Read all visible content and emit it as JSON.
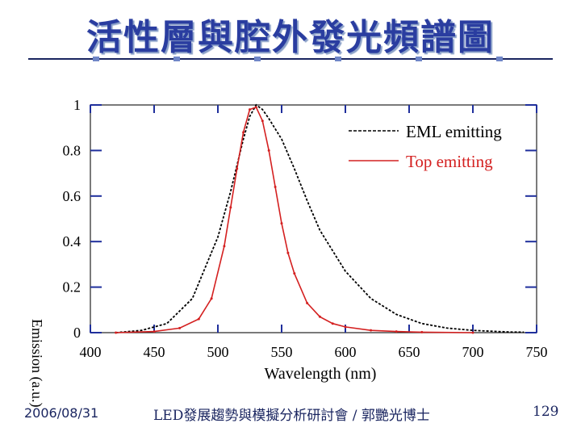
{
  "slide": {
    "title": "活性層與腔外發光頻譜圖",
    "footer_date": "2006/08/31",
    "footer_center": "LED發展趨勢與模擬分析研討會 / 郭艷光博士",
    "page_number": "129"
  },
  "colors": {
    "title": "#2a3da0",
    "eml": "#000000",
    "top": "#d42020",
    "axis_tick": "#1f2f9c"
  },
  "chart_data": {
    "type": "line",
    "xlabel": "Wavelength (nm)",
    "ylabel": "Emission (a.u.)",
    "xlim": [
      400,
      750
    ],
    "ylim": [
      0,
      1
    ],
    "xticks": [
      400,
      450,
      500,
      550,
      600,
      650,
      700,
      750
    ],
    "xtick_labels": [
      "400",
      "450",
      "500",
      "550",
      "600",
      "650",
      "700",
      "750"
    ],
    "yticks": [
      0,
      0.2,
      0.4,
      0.6,
      0.8,
      1
    ],
    "ytick_labels": [
      "0",
      "0.2",
      "0.4",
      "0.6",
      "0.8",
      "1"
    ],
    "legend_position": "top-right",
    "series": [
      {
        "name": "EML emitting",
        "style": "dashed",
        "color": "#000000",
        "x": [
          420,
          440,
          460,
          480,
          500,
          510,
          520,
          525,
          530,
          535,
          540,
          550,
          560,
          570,
          580,
          600,
          620,
          640,
          660,
          680,
          700,
          720,
          730,
          740
        ],
        "y": [
          0.0,
          0.01,
          0.04,
          0.15,
          0.42,
          0.62,
          0.85,
          0.95,
          1.0,
          0.98,
          0.94,
          0.85,
          0.72,
          0.58,
          0.45,
          0.27,
          0.15,
          0.08,
          0.04,
          0.02,
          0.01,
          0.005,
          0.003,
          0.002
        ]
      },
      {
        "name": "Top emitting",
        "style": "solid",
        "color": "#d42020",
        "x": [
          420,
          450,
          470,
          485,
          495,
          505,
          510,
          515,
          520,
          525,
          530,
          535,
          540,
          545,
          550,
          555,
          560,
          570,
          580,
          590,
          600,
          620,
          640,
          660,
          700
        ],
        "y": [
          0.0,
          0.005,
          0.02,
          0.06,
          0.15,
          0.38,
          0.55,
          0.72,
          0.88,
          0.98,
          0.99,
          0.93,
          0.8,
          0.64,
          0.48,
          0.35,
          0.26,
          0.13,
          0.07,
          0.04,
          0.025,
          0.01,
          0.005,
          0.002,
          0.0
        ]
      }
    ]
  }
}
